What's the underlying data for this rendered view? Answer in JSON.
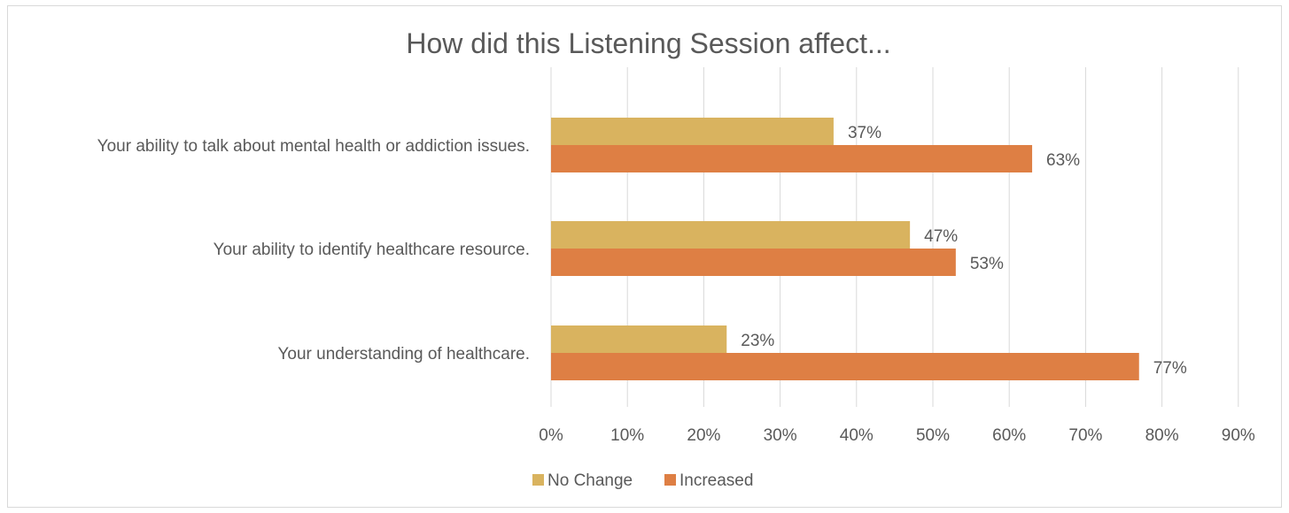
{
  "chart_data": {
    "type": "bar",
    "orientation": "horizontal",
    "title": "How did this Listening Session affect...",
    "categories": [
      "Your ability to talk about mental health or addiction issues.",
      "Your ability to identify healthcare resource.",
      "Your understanding of healthcare."
    ],
    "series": [
      {
        "name": "No Change",
        "color": "#d9b35f",
        "values": [
          37,
          47,
          23
        ],
        "labels": [
          "37%",
          "47%",
          "23%"
        ]
      },
      {
        "name": "Increased",
        "color": "#de7f44",
        "values": [
          63,
          53,
          77
        ],
        "labels": [
          "63%",
          "53%",
          "77%"
        ]
      }
    ],
    "xticks": [
      "0%",
      "10%",
      "20%",
      "30%",
      "40%",
      "50%",
      "60%",
      "70%",
      "80%",
      "90%"
    ],
    "xlim": [
      0,
      90
    ],
    "grid": true,
    "legend": "bottom"
  }
}
